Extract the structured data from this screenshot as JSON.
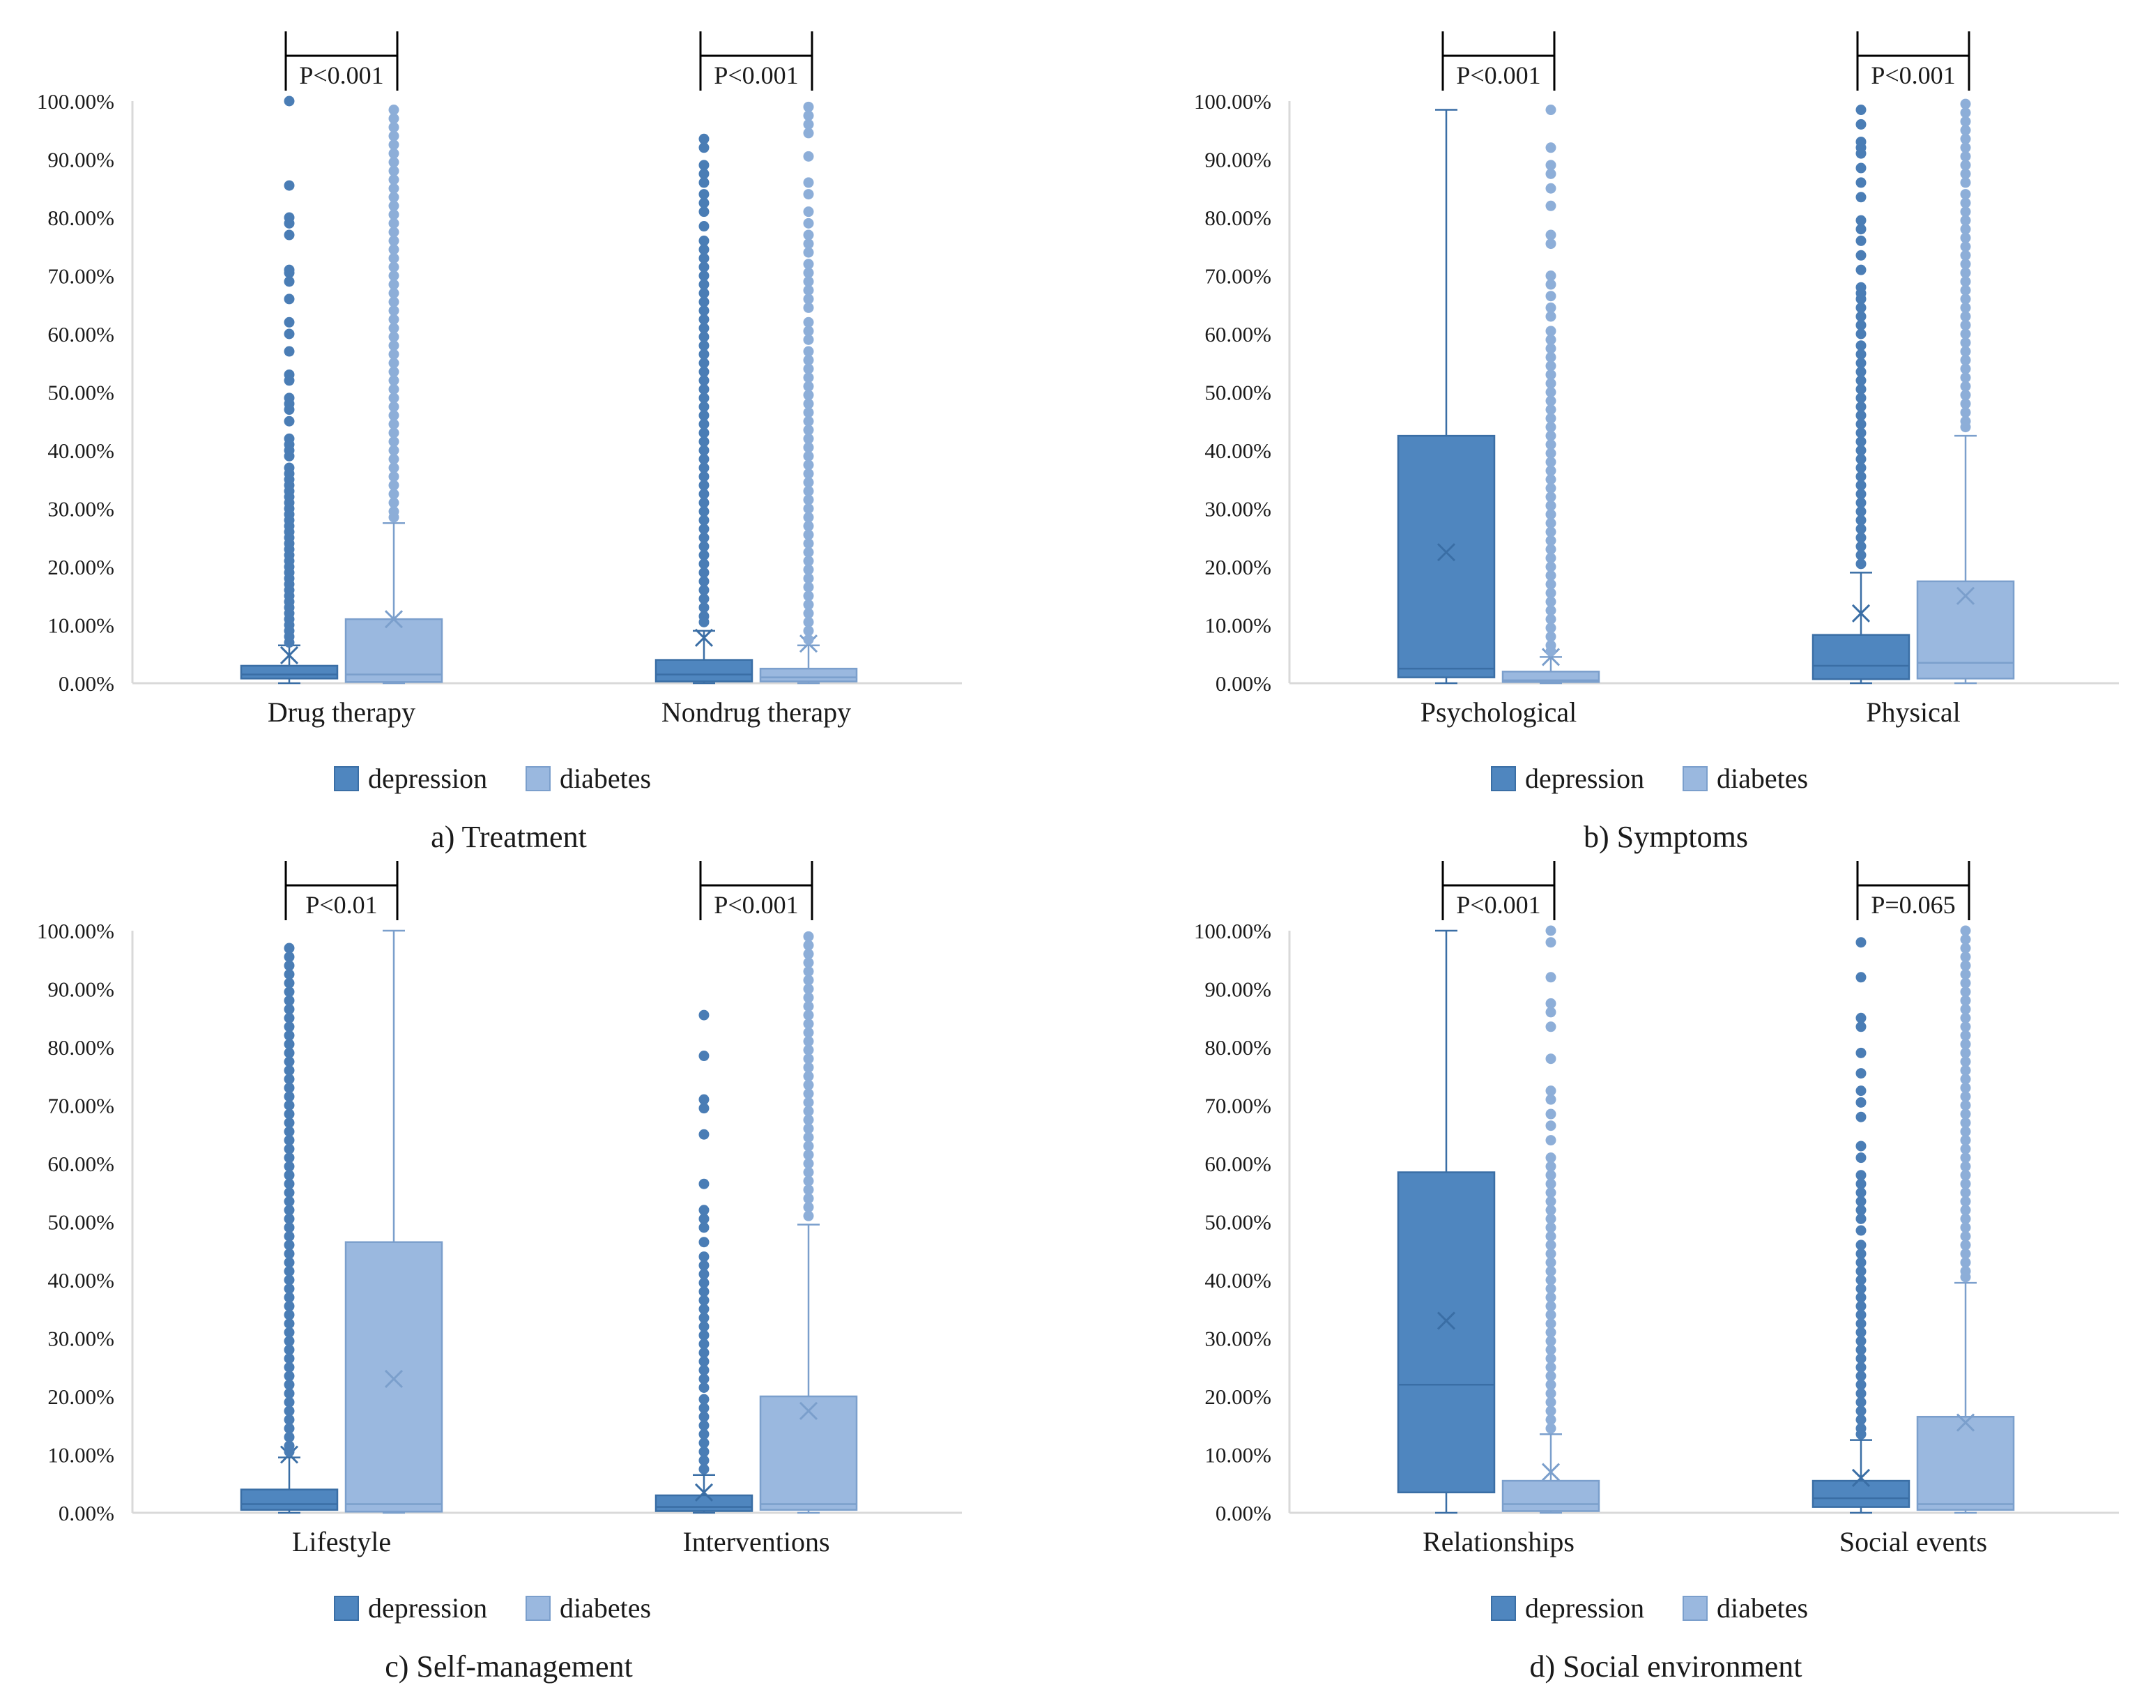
{
  "series_names": [
    "depression",
    "diabetes"
  ],
  "colors": {
    "depression_fill": "#4f86bf",
    "depression_stroke": "#3a6ea5",
    "depression_point": "#4a7db5",
    "diabetes_fill": "#9ab8df",
    "diabetes_stroke": "#7b9fcc",
    "diabetes_point": "#8daed8",
    "axis": "#d9d9d9",
    "bracket": "#000000"
  },
  "chart_data": [
    {
      "type": "boxplot",
      "title": "a) Treatment",
      "ylim": [
        0,
        100
      ],
      "yticks": [
        "0.00%",
        "10.00%",
        "20.00%",
        "30.00%",
        "40.00%",
        "50.00%",
        "60.00%",
        "70.00%",
        "80.00%",
        "90.00%",
        "100.00%"
      ],
      "legend": [
        "depression",
        "diabetes"
      ],
      "groups": [
        {
          "category": "Drug therapy",
          "pvalue": "P<0.001",
          "depression": {
            "min": 0,
            "q1": 0.8,
            "median": 1.5,
            "q3": 3.0,
            "max": 6.5,
            "mean": 4.8,
            "outliers": [
              100,
              85.5,
              80,
              79,
              77,
              71,
              70.5,
              69,
              66,
              62,
              60,
              57,
              53,
              52,
              49,
              48,
              47,
              45,
              42,
              41,
              40,
              39,
              37,
              36,
              35,
              34,
              33,
              32,
              31,
              30,
              29,
              28,
              27,
              26,
              25,
              24,
              23,
              22,
              21,
              20,
              19,
              18,
              17,
              16,
              15,
              14,
              13,
              12,
              11,
              10,
              9,
              8,
              7
            ]
          },
          "diabetes": {
            "min": 0,
            "q1": 0.2,
            "median": 1.5,
            "q3": 11.0,
            "max": 27.5,
            "mean": 11.0,
            "outliers": [
              98.5,
              97,
              95.5,
              94,
              92.5,
              91,
              89.5,
              88,
              86.5,
              85,
              83.5,
              82,
              80.5,
              79,
              77.5,
              76,
              74.5,
              73,
              71.5,
              70,
              68.5,
              67,
              65.5,
              64,
              62.5,
              61,
              59.5,
              58,
              56.5,
              55,
              53.5,
              52,
              50.5,
              49,
              47.5,
              46,
              44.5,
              43,
              41.5,
              40,
              38.5,
              37,
              35.5,
              34,
              32.5,
              31,
              29.5,
              28.5
            ]
          }
        },
        {
          "category": "Nondrug therapy",
          "pvalue": "P<0.001",
          "depression": {
            "min": 0,
            "q1": 0.3,
            "median": 1.5,
            "q3": 4.0,
            "max": 9.0,
            "mean": 7.8,
            "outliers": [
              93.5,
              92,
              89,
              87.5,
              86,
              84,
              82.5,
              81,
              78.5,
              76,
              74.5,
              73,
              71.5,
              70,
              68.5,
              67,
              65.5,
              64,
              62.5,
              61,
              59.5,
              58,
              56.5,
              55,
              53.5,
              52,
              50.5,
              49,
              47.5,
              46,
              44.5,
              43,
              41.5,
              40,
              38.5,
              37,
              35.5,
              34,
              32.5,
              31,
              29.5,
              28,
              26.5,
              25,
              23.5,
              22,
              20.5,
              19,
              17.5,
              16,
              14.5,
              13,
              11.5,
              10.5
            ]
          },
          "diabetes": {
            "min": 0,
            "q1": 0.3,
            "median": 1.0,
            "q3": 2.5,
            "max": 6.5,
            "mean": 6.8,
            "outliers": [
              99,
              97.5,
              96,
              94.5,
              90.5,
              86,
              84,
              81,
              79,
              77,
              75.5,
              74,
              72,
              70.5,
              69,
              67.5,
              66,
              64.5,
              62,
              60.5,
              59,
              57,
              55.5,
              54,
              52.5,
              51,
              49.5,
              48,
              46.5,
              45,
              43.5,
              42,
              40.5,
              39,
              37.5,
              36,
              34.5,
              33,
              31.5,
              30,
              28.5,
              27,
              25.5,
              24,
              22.5,
              21,
              19.5,
              18,
              16.5,
              15,
              13.5,
              12,
              10.5,
              9,
              7.5
            ]
          }
        }
      ]
    },
    {
      "type": "boxplot",
      "title": "b) Symptoms",
      "ylim": [
        0,
        100
      ],
      "yticks": [
        "0.00%",
        "10.00%",
        "20.00%",
        "30.00%",
        "40.00%",
        "50.00%",
        "60.00%",
        "70.00%",
        "80.00%",
        "90.00%",
        "100.00%"
      ],
      "legend": [
        "depression",
        "diabetes"
      ],
      "groups": [
        {
          "category": "Psychological",
          "pvalue": "P<0.001",
          "depression": {
            "min": 0,
            "q1": 1.0,
            "median": 2.5,
            "q3": 42.5,
            "max": 98.5,
            "mean": 22.5,
            "outliers": []
          },
          "diabetes": {
            "min": 0,
            "q1": 0.2,
            "median": 0.5,
            "q3": 2.0,
            "max": 4.5,
            "mean": 4.5,
            "outliers": [
              98.5,
              92,
              89,
              87.5,
              85,
              82,
              77,
              75.5,
              70,
              68.5,
              66.5,
              64.5,
              63,
              60.5,
              59,
              57.5,
              56,
              54.5,
              53,
              51.5,
              50,
              48.5,
              47,
              45.5,
              44,
              42.5,
              41,
              39.5,
              38,
              36.5,
              35,
              33.5,
              32,
              30.5,
              29,
              27.5,
              26,
              24.5,
              23,
              21.5,
              20,
              18.5,
              17,
              15.5,
              14,
              12.5,
              11,
              9.5,
              8,
              6.5,
              5.5
            ]
          }
        },
        {
          "category": "Physical",
          "pvalue": "P<0.001",
          "depression": {
            "min": 0,
            "q1": 0.7,
            "median": 3.0,
            "q3": 8.3,
            "max": 19.0,
            "mean": 12.0,
            "outliers": [
              98.5,
              96,
              93,
              92,
              91,
              88.5,
              86,
              83.5,
              79.5,
              78,
              76,
              73.5,
              71,
              68,
              67,
              66,
              64.5,
              63,
              61.5,
              60,
              58,
              56.5,
              55,
              53.5,
              52,
              50.5,
              49,
              47.5,
              46,
              44.5,
              43,
              41.5,
              40,
              38.5,
              37,
              35.5,
              34,
              32.5,
              31,
              29.5,
              28,
              26.5,
              25,
              23.5,
              22,
              20.5
            ]
          },
          "diabetes": {
            "min": 0,
            "q1": 0.8,
            "median": 3.5,
            "q3": 17.5,
            "max": 42.5,
            "mean": 15.0,
            "outliers": [
              99.5,
              98,
              96.5,
              95,
              93.5,
              92,
              90.5,
              89,
              87.5,
              86,
              84,
              82.5,
              81,
              79.5,
              78,
              76.5,
              75,
              73.5,
              72,
              70.5,
              69,
              67.5,
              66,
              64.5,
              63,
              61.5,
              60,
              58.5,
              57,
              55.5,
              54,
              52.5,
              51,
              49.5,
              48,
              46.5,
              45,
              44
            ]
          }
        }
      ]
    },
    {
      "type": "boxplot",
      "title": "c) Self-management",
      "ylim": [
        0,
        100
      ],
      "yticks": [
        "0.00%",
        "10.00%",
        "20.00%",
        "30.00%",
        "40.00%",
        "50.00%",
        "60.00%",
        "70.00%",
        "80.00%",
        "90.00%",
        "100.00%"
      ],
      "legend": [
        "depression",
        "diabetes"
      ],
      "groups": [
        {
          "category": "Lifestyle",
          "pvalue": "P<0.01",
          "depression": {
            "min": 0,
            "q1": 0.5,
            "median": 1.5,
            "q3": 4.0,
            "max": 9.5,
            "mean": 10.0,
            "outliers": [
              97,
              95.5,
              94,
              92.5,
              91,
              89.5,
              88,
              86.5,
              85,
              83.5,
              82,
              80.5,
              79,
              77.5,
              76,
              74.5,
              73,
              71.5,
              70,
              68.5,
              67,
              65.5,
              64,
              62.5,
              61,
              59.5,
              58,
              56.5,
              55,
              53.5,
              52,
              50.5,
              49,
              47.5,
              46,
              44.5,
              43,
              41.5,
              40,
              38.5,
              37,
              35.5,
              34,
              32.5,
              31,
              29.5,
              28,
              26.5,
              25,
              23.5,
              22,
              20.5,
              19,
              17.5,
              16,
              14.5,
              13,
              11.5,
              10.5
            ]
          },
          "diabetes": {
            "min": 0,
            "q1": 0.2,
            "median": 1.5,
            "q3": 46.5,
            "max": 100,
            "mean": 23.0,
            "outliers": []
          }
        },
        {
          "category": "Interventions",
          "pvalue": "P<0.001",
          "depression": {
            "min": 0,
            "q1": 0.3,
            "median": 1.0,
            "q3": 3.0,
            "max": 6.5,
            "mean": 3.5,
            "outliers": [
              85.5,
              78.5,
              71,
              69.5,
              65,
              56.5,
              52,
              50.5,
              49,
              46.5,
              44,
              42.5,
              41,
              39.5,
              38,
              36.5,
              35,
              33.5,
              32,
              30.5,
              29,
              27.5,
              26,
              24.5,
              23,
              21.5,
              19.5,
              18,
              16.5,
              15,
              13.5,
              12,
              10.5,
              9,
              7.5
            ]
          },
          "diabetes": {
            "min": 0,
            "q1": 0.5,
            "median": 1.5,
            "q3": 20.0,
            "max": 49.5,
            "mean": 17.5,
            "outliers": [
              99,
              97.5,
              96,
              94.5,
              93,
              91.5,
              90,
              88.5,
              87,
              85.5,
              84,
              82.5,
              81,
              79.5,
              78,
              76.5,
              75,
              73.5,
              72,
              70.5,
              69,
              67.5,
              66,
              64.5,
              63,
              61.5,
              60,
              58.5,
              57,
              55.5,
              54,
              52.5,
              51
            ]
          }
        }
      ]
    },
    {
      "type": "boxplot",
      "title": "d) Social environment",
      "ylim": [
        0,
        100
      ],
      "yticks": [
        "0.00%",
        "10.00%",
        "20.00%",
        "30.00%",
        "40.00%",
        "50.00%",
        "60.00%",
        "70.00%",
        "80.00%",
        "90.00%",
        "100.00%"
      ],
      "legend": [
        "depression",
        "diabetes"
      ],
      "groups": [
        {
          "category": "Relationships",
          "pvalue": "P<0.001",
          "depression": {
            "min": 0,
            "q1": 3.5,
            "median": 22.0,
            "q3": 58.5,
            "max": 100,
            "mean": 33.0,
            "outliers": []
          },
          "diabetes": {
            "min": 0,
            "q1": 0.3,
            "median": 1.5,
            "q3": 5.5,
            "max": 13.5,
            "mean": 7.0,
            "outliers": [
              100,
              98,
              92,
              87.5,
              86,
              83.5,
              78,
              72.5,
              71,
              68.5,
              66.5,
              64,
              61,
              59.5,
              58,
              56.5,
              55,
              53.5,
              52,
              50.5,
              49,
              47.5,
              46,
              44.5,
              43,
              41.5,
              40,
              38.5,
              37,
              35.5,
              34,
              32.5,
              31,
              29.5,
              28,
              26.5,
              25,
              23.5,
              22,
              20.5,
              19,
              17.5,
              16,
              14.5
            ]
          }
        },
        {
          "category": "Social events",
          "pvalue": "P=0.065",
          "depression": {
            "min": 0,
            "q1": 1.0,
            "median": 2.5,
            "q3": 5.5,
            "max": 12.5,
            "mean": 6.0,
            "outliers": [
              98,
              92,
              85,
              83.5,
              79,
              75.5,
              72.5,
              70.5,
              68,
              63,
              61,
              58,
              56.5,
              55,
              53.5,
              52,
              50.5,
              48.5,
              46,
              44.5,
              43,
              41.5,
              40,
              38.5,
              37,
              35.5,
              34,
              32.5,
              31,
              29.5,
              28,
              26.5,
              25,
              23.5,
              22,
              20.5,
              19,
              17.5,
              16,
              14.5,
              13.5
            ]
          },
          "diabetes": {
            "min": 0,
            "q1": 0.5,
            "median": 1.5,
            "q3": 16.5,
            "max": 39.5,
            "mean": 15.5,
            "outliers": [
              100,
              98.5,
              97,
              95.5,
              94,
              92.5,
              91,
              89.5,
              88,
              86.5,
              85,
              83.5,
              82,
              80.5,
              79,
              77.5,
              76,
              74.5,
              73,
              71.5,
              70,
              68.5,
              67,
              65.5,
              64,
              62.5,
              61,
              59.5,
              58,
              56.5,
              55,
              53.5,
              52,
              50.5,
              49,
              47.5,
              46,
              44.5,
              43,
              41.5,
              40.5
            ]
          }
        }
      ]
    }
  ]
}
